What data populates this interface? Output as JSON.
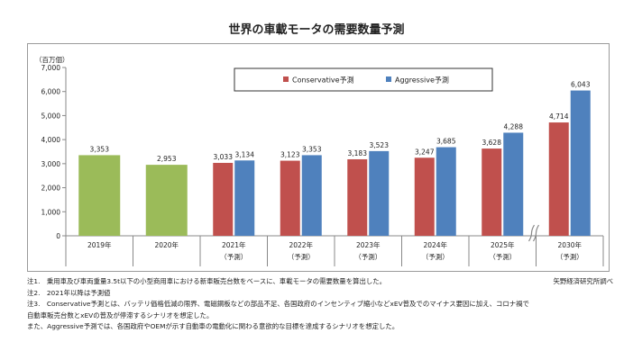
{
  "title": "世界の車載モータの需要数量予測",
  "chart_data": {
    "type": "bar",
    "ylabel": "（百万個）",
    "ylim": [
      0,
      7000
    ],
    "yticks": [
      0,
      1000,
      2000,
      3000,
      4000,
      5000,
      6000,
      7000
    ],
    "ytick_labels": [
      "0",
      "1,000",
      "2,000",
      "3,000",
      "4,000",
      "5,000",
      "6,000",
      "7,000"
    ],
    "grid": false,
    "legend_position": "top-right",
    "categories": [
      {
        "label": "2019年",
        "sub": ""
      },
      {
        "label": "2020年",
        "sub": ""
      },
      {
        "label": "2021年",
        "sub": "（予測）"
      },
      {
        "label": "2022年",
        "sub": "（予測）"
      },
      {
        "label": "2023年",
        "sub": "（予測）"
      },
      {
        "label": "2024年",
        "sub": "（予測）"
      },
      {
        "label": "2025年",
        "sub": "（予測）"
      },
      {
        "label": "2030年",
        "sub": "（予測）"
      }
    ],
    "actual": {
      "color": "#9bbb59",
      "values": [
        3353,
        2953
      ],
      "labels": [
        "3,353",
        "2,953"
      ]
    },
    "series": [
      {
        "name": "Conservative予測",
        "color": "#c0504d",
        "values": [
          null,
          null,
          3033,
          3123,
          3183,
          3247,
          3628,
          4714
        ],
        "labels": [
          "",
          "",
          "3,033",
          "3,123",
          "3,183",
          "3,247",
          "3,628",
          "4,714"
        ]
      },
      {
        "name": "Aggressive予測",
        "color": "#4f81bd",
        "values": [
          null,
          null,
          3134,
          3353,
          3523,
          3685,
          4288,
          6043
        ],
        "labels": [
          "",
          "",
          "3,134",
          "3,353",
          "3,523",
          "3,685",
          "4,288",
          "6,043"
        ]
      }
    ],
    "axis_break_before_index": 7
  },
  "notes": {
    "n1": "注1.　乗用車及び車両重量3.5t以下の小型商用車における新車販売台数をベースに、車載モータの需要数量を算出した。",
    "source": "矢野経済研究所調べ",
    "n2": "注2.　2021年以降は予測値",
    "n3a": "注3.　Conservative予測とは、バッテリ価格低減の限界、電磁鋼板などの部品不足、各国政府のインセンティブ縮小などxEV普及でのマイナス要因に加え、コロナ禍で",
    "n3b": "自動車販売台数とxEVの普及が停滞するシナリオを想定した。",
    "n3c": "また、Aggressive予測では、各国政府やOEMが示す自動車の電動化に関わる意欲的な目標を達成するシナリオを想定した。"
  }
}
